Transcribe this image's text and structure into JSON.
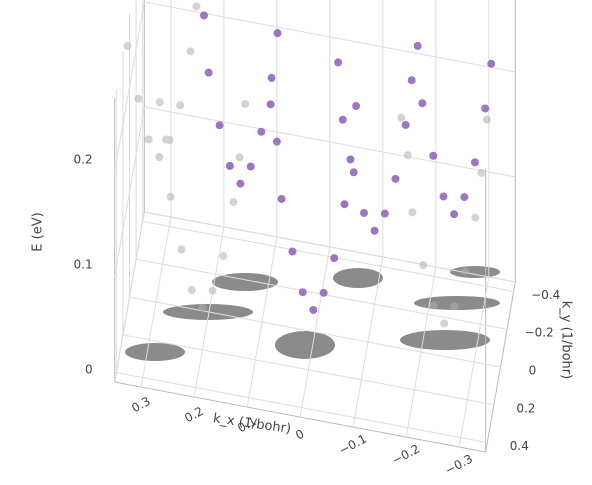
{
  "chart_data": {
    "type": "scatter3d",
    "x_label": "k_x (1/bohr)",
    "y_label": "k_y (1/bohr)",
    "z_label": "E (eV)",
    "xlim": [
      -0.35,
      0.35
    ],
    "ylim": [
      -0.45,
      0.45
    ],
    "zlim": [
      0,
      0.27
    ],
    "xticks": [
      0.3,
      0.2,
      0.1,
      0,
      {
        "value": -0.1,
        "label": "−0.1"
      },
      {
        "value": -0.2,
        "label": "−0.2"
      },
      {
        "value": -0.3,
        "label": "−0.3"
      }
    ],
    "yticks": [
      {
        "value": -0.4,
        "label": "−0.4"
      },
      {
        "value": -0.2,
        "label": "−0.2"
      },
      0,
      0.2,
      0.4
    ],
    "zticks": [
      0,
      0.1,
      0.2
    ],
    "grid": true,
    "series": [
      {
        "color": "#b0b0b0",
        "x": [
          0.3,
          0.32,
          0.28,
          0.34,
          0.26,
          0.36,
          0.24,
          0.37,
          0.23,
          0.2,
          0.22,
          0.18,
          0.24,
          0.16,
          0.26,
          0.14,
          0.27,
          0.13,
          0.28,
          0.12,
          -0.25,
          -0.23,
          -0.27,
          -0.21,
          -0.29,
          -0.19,
          -0.31,
          -0.18,
          -0.32,
          -0.17,
          -0.33
        ],
        "y": [
          -0.1,
          -0.1,
          -0.09,
          -0.11,
          -0.09,
          -0.1,
          -0.08,
          -0.12,
          -0.1,
          0.2,
          0.2,
          0.21,
          0.19,
          0.21,
          0.2,
          0.22,
          0.18,
          0.2,
          0.21,
          0.19,
          0.1,
          0.1,
          0.11,
          0.09,
          0.11,
          0.1,
          0.12,
          0.08,
          0.1,
          0.11,
          0.09
        ],
        "z": [
          0.12,
          0.135,
          0.14,
          0.17,
          0.175,
          0.22,
          0.23,
          0.27,
          0.27,
          0.04,
          0.055,
          0.06,
          0.09,
          0.095,
          0.14,
          0.15,
          0.19,
          0.19,
          0.23,
          0.24,
          0.05,
          0.065,
          0.07,
          0.1,
          0.105,
          0.15,
          0.16,
          0.2,
          0.2,
          0.24,
          0.25
        ]
      },
      {
        "color": "#9467bd",
        "x": [
          0,
          0.02,
          -0.02,
          0.04,
          -0.04,
          0.06,
          -0.06,
          0.07,
          -0.07,
          0.08,
          -0.08,
          -0.1,
          -0.08,
          -0.12,
          -0.06,
          -0.14,
          -0.04,
          -0.16,
          -0.03,
          -0.17,
          0.15,
          0.17,
          0.13,
          0.19,
          0.11,
          0.21,
          0.09,
          0.22,
          0.08,
          -0.25,
          -0.23,
          -0.27,
          -0.21,
          -0.29,
          -0.19,
          -0.31,
          -0.18,
          -0.32
        ],
        "y": [
          0.05,
          0.05,
          0.06,
          0.04,
          0.06,
          0.05,
          0.07,
          0.03,
          0.05,
          0.06,
          0.04,
          -0.2,
          -0.2,
          -0.19,
          -0.21,
          -0.19,
          -0.2,
          -0.18,
          -0.22,
          -0.2,
          -0.15,
          -0.15,
          -0.14,
          -0.16,
          -0.14,
          -0.15,
          -0.13,
          -0.17,
          -0.15,
          -0.2,
          -0.2,
          -0.19,
          -0.21,
          -0.19,
          -0.2,
          -0.18,
          -0.22,
          -0.2
        ],
        "z": [
          0.03,
          0.045,
          0.05,
          0.08,
          0.085,
          0.13,
          0.14,
          0.18,
          0.18,
          0.22,
          0.23,
          0.07,
          0.085,
          0.09,
          0.12,
          0.125,
          0.17,
          0.18,
          0.22,
          0.22,
          0.1,
          0.115,
          0.12,
          0.15,
          0.155,
          0.2,
          0.21,
          0.25,
          0.25,
          0.1,
          0.115,
          0.12,
          0.15,
          0.155,
          0.2,
          0.21,
          0.25,
          0.25
        ]
      }
    ]
  }
}
